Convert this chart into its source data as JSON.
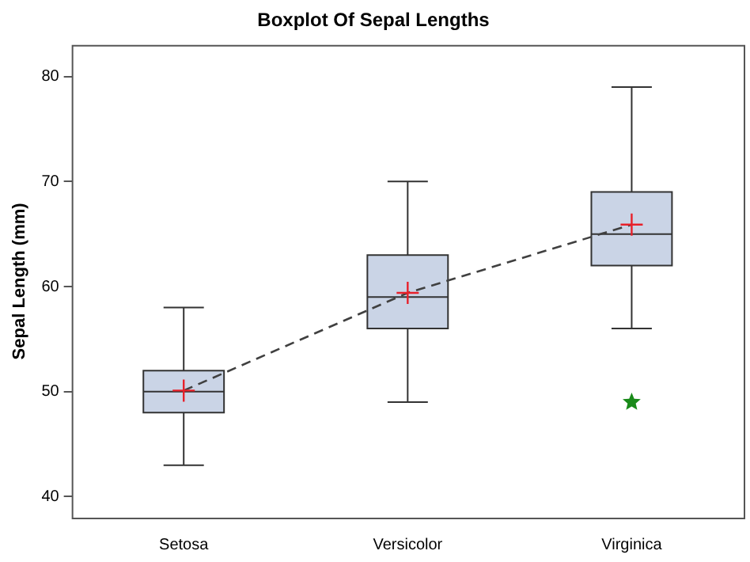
{
  "chart_data": {
    "type": "box",
    "title": "Boxplot Of Sepal Lengths",
    "ylabel": "Sepal Length (mm)",
    "categories": [
      "Setosa",
      "Versicolor",
      "Virginica"
    ],
    "ylim": [
      38,
      83
    ],
    "yticks": [
      40,
      50,
      60,
      70,
      80
    ],
    "grid": false,
    "legend": false,
    "series": [
      {
        "type": "box",
        "color": "#cad4e6",
        "boxes": [
          {
            "low": 43,
            "q1": 48,
            "median": 50,
            "q3": 52,
            "high": 58,
            "mean": 50.1
          },
          {
            "low": 49,
            "q1": 56,
            "median": 59,
            "q3": 63,
            "high": 70,
            "mean": 59.4
          },
          {
            "low": 56,
            "q1": 62,
            "median": 65,
            "q3": 69,
            "high": 79,
            "mean": 65.9,
            "outliers": [
              49
            ]
          }
        ]
      },
      {
        "type": "line",
        "color": "#404040",
        "line_style": "dashed",
        "values": [
          50.1,
          59.4,
          65.9
        ]
      }
    ]
  }
}
